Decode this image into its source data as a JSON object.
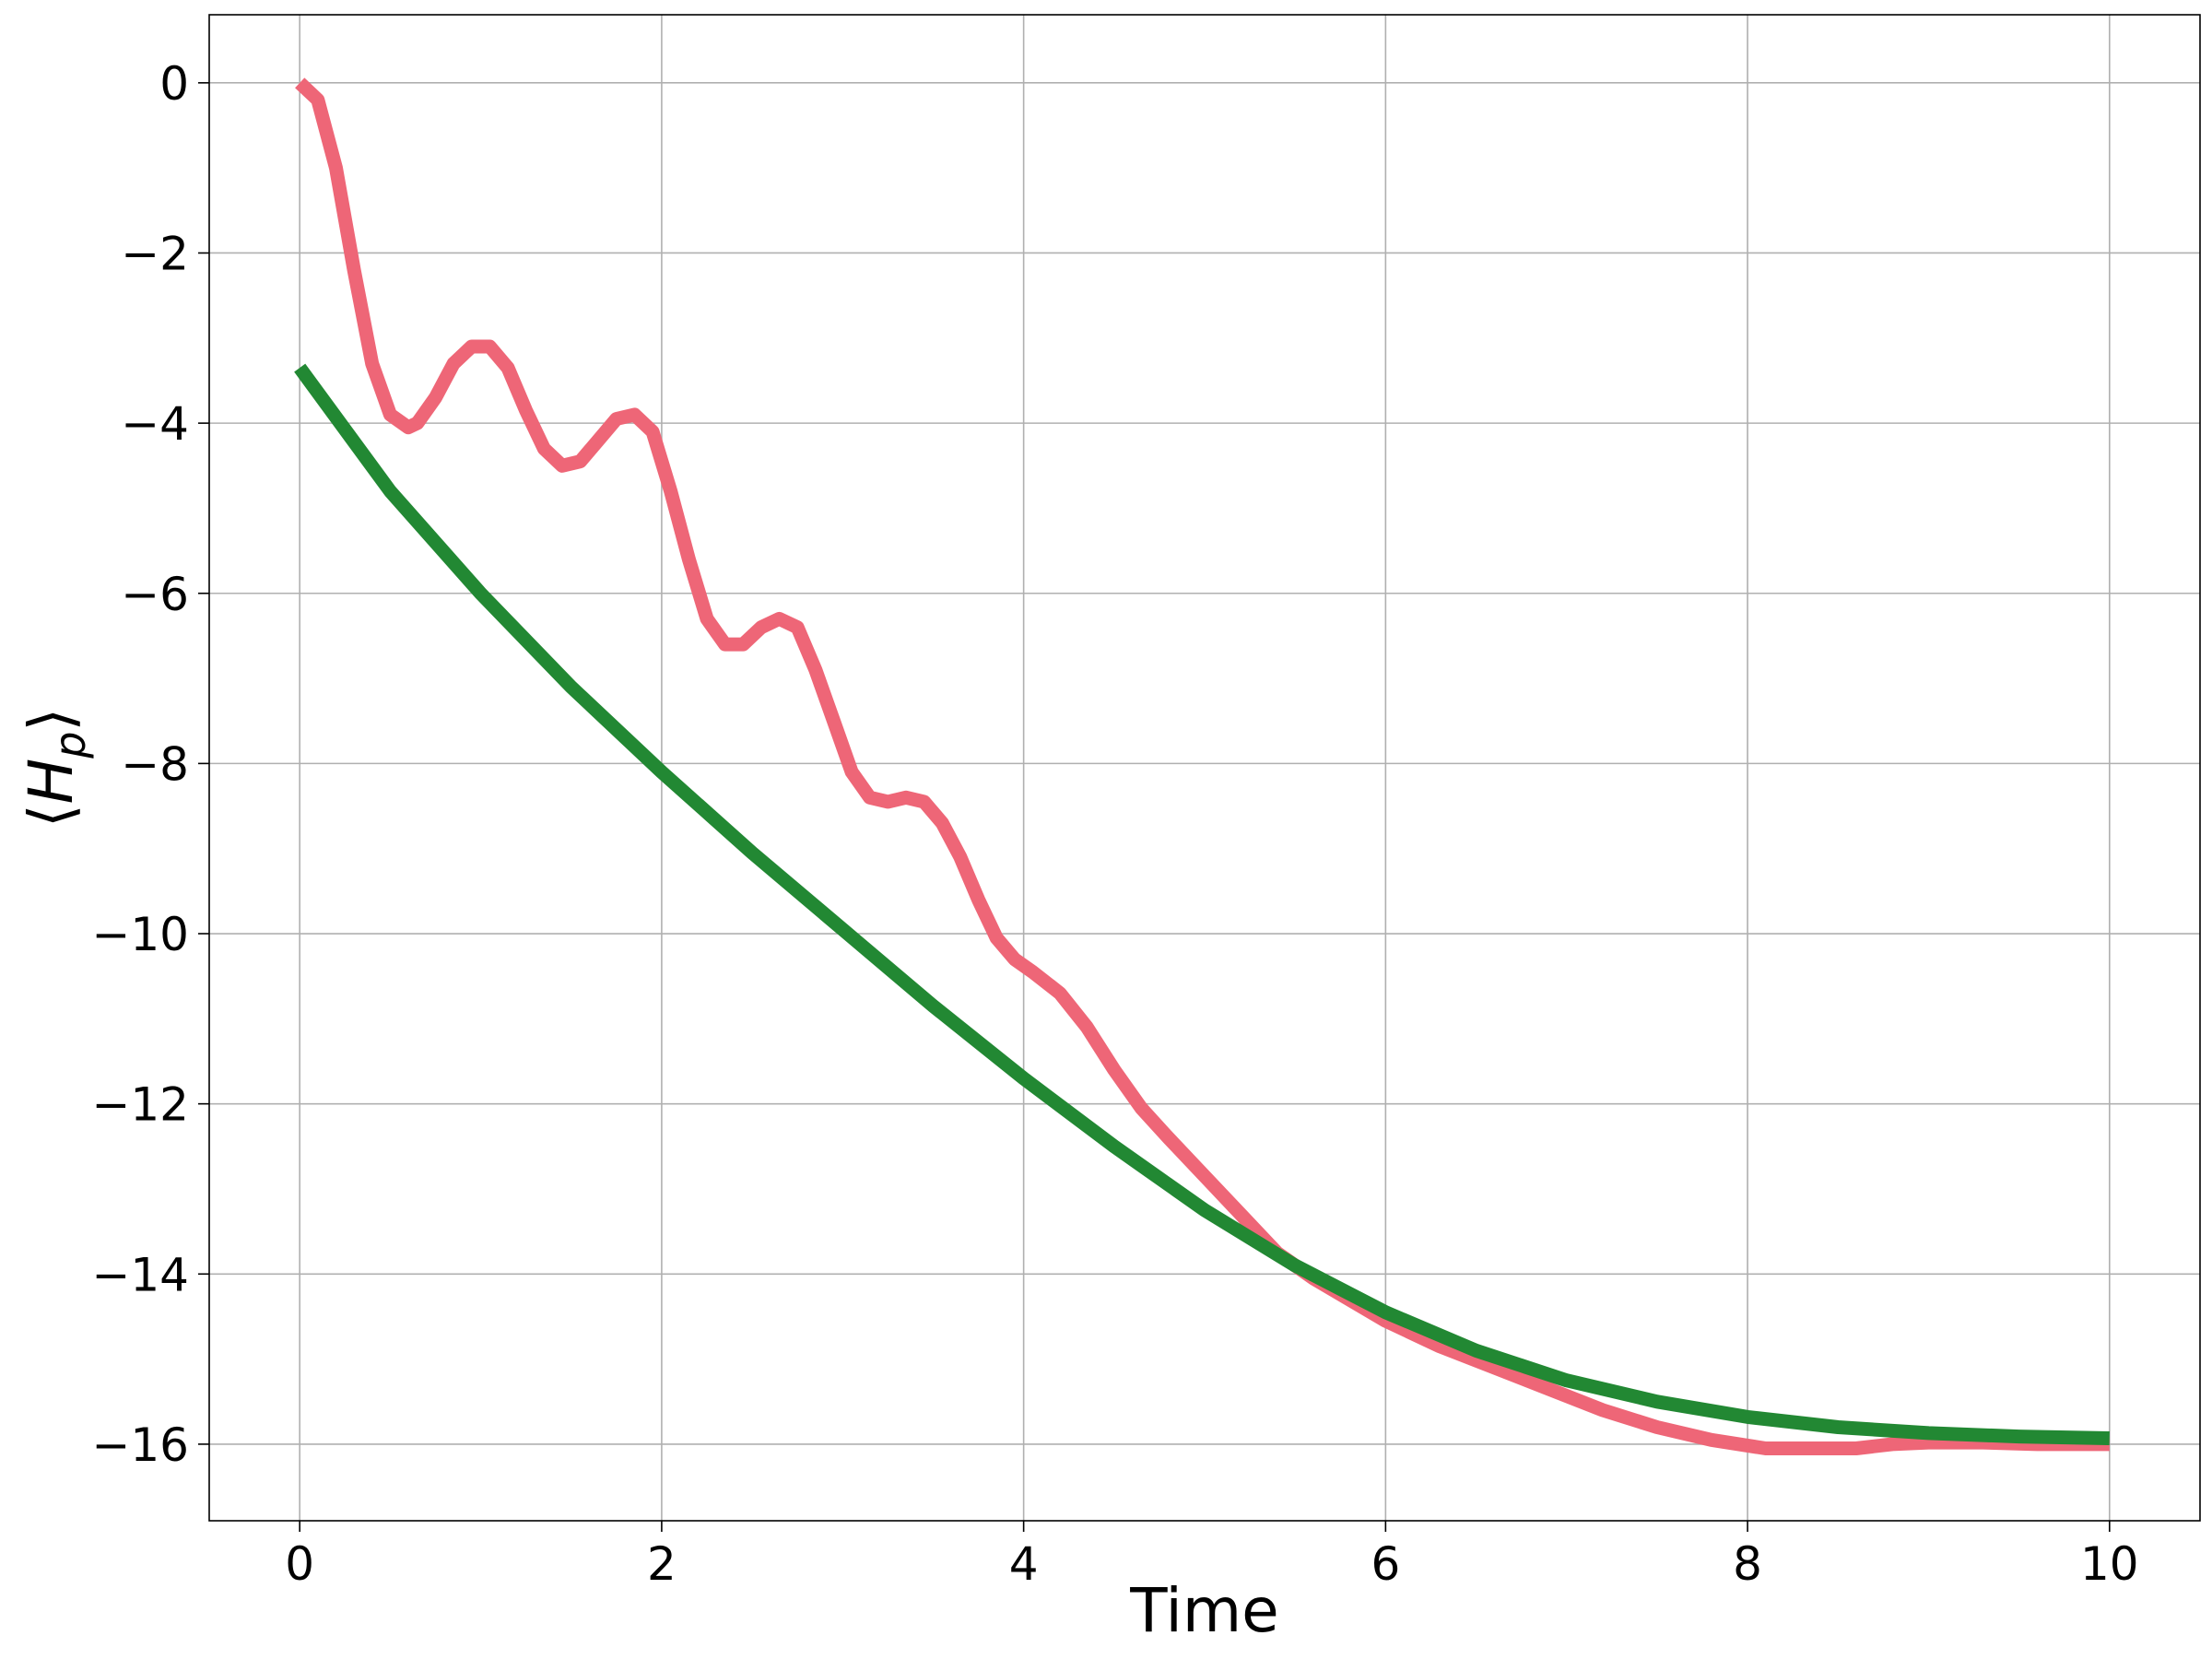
{
  "chart_data": {
    "type": "line",
    "title": "",
    "xlabel": "Time",
    "ylabel": "⟨H_p⟩",
    "ylabel_parts": {
      "open": "⟨",
      "symbol": "H",
      "subscript": "p",
      "close": "⟩"
    },
    "xlim": [
      -0.5,
      10.5
    ],
    "ylim": [
      -16.9,
      0.8
    ],
    "xticks": [
      0,
      2,
      4,
      6,
      8,
      10
    ],
    "xtick_labels": [
      "0",
      "2",
      "4",
      "6",
      "8",
      "10"
    ],
    "yticks": [
      0,
      -2,
      -4,
      -6,
      -8,
      -10,
      -12,
      -14,
      -16
    ],
    "ytick_labels": [
      "0",
      "−2",
      "−4",
      "−6",
      "−8",
      "−10",
      "−12",
      "−14",
      "−16"
    ],
    "grid": true,
    "legend": false,
    "series": [
      {
        "color": "#ee6677",
        "x": [
          0,
          0.1,
          0.2,
          0.3,
          0.4,
          0.5,
          0.6,
          0.65,
          0.75,
          0.85,
          0.95,
          1.05,
          1.15,
          1.25,
          1.35,
          1.45,
          1.55,
          1.65,
          1.75,
          1.85,
          1.95,
          2.05,
          2.15,
          2.25,
          2.35,
          2.45,
          2.55,
          2.65,
          2.75,
          2.85,
          2.95,
          3.05,
          3.15,
          3.25,
          3.35,
          3.45,
          3.55,
          3.65,
          3.75,
          3.85,
          3.95,
          4.05,
          4.2,
          4.35,
          4.5,
          4.65,
          4.8,
          5.0,
          5.2,
          5.4,
          5.6,
          5.8,
          6.0,
          6.3,
          6.6,
          6.9,
          7.2,
          7.5,
          7.8,
          8.1,
          8.4,
          8.6,
          8.8,
          9.0,
          9.3,
          9.6,
          10.0
        ],
        "y": [
          0,
          -0.2,
          -1.0,
          -2.2,
          -3.3,
          -3.9,
          -4.05,
          -4.0,
          -3.7,
          -3.3,
          -3.1,
          -3.1,
          -3.35,
          -3.85,
          -4.3,
          -4.5,
          -4.45,
          -4.2,
          -3.95,
          -3.9,
          -4.1,
          -4.8,
          -5.6,
          -6.3,
          -6.6,
          -6.6,
          -6.4,
          -6.3,
          -6.4,
          -6.9,
          -7.5,
          -8.1,
          -8.4,
          -8.45,
          -8.4,
          -8.45,
          -8.7,
          -9.1,
          -9.6,
          -10.05,
          -10.3,
          -10.45,
          -10.7,
          -11.1,
          -11.6,
          -12.05,
          -12.4,
          -12.85,
          -13.3,
          -13.75,
          -14.05,
          -14.3,
          -14.55,
          -14.85,
          -15.1,
          -15.35,
          -15.6,
          -15.8,
          -15.95,
          -16.05,
          -16.05,
          -16.05,
          -16.0,
          -15.98,
          -15.98,
          -16.0,
          -16.0
        ]
      },
      {
        "color": "#228833",
        "x": [
          0,
          0.5,
          1,
          1.5,
          2,
          2.5,
          3,
          3.5,
          4,
          4.5,
          5,
          5.5,
          6,
          6.5,
          7,
          7.5,
          8,
          8.5,
          9,
          9.5,
          10
        ],
        "y": [
          -3.35,
          -4.8,
          -6.0,
          -7.1,
          -8.1,
          -9.05,
          -9.95,
          -10.85,
          -11.7,
          -12.5,
          -13.25,
          -13.9,
          -14.45,
          -14.9,
          -15.25,
          -15.5,
          -15.68,
          -15.8,
          -15.87,
          -15.91,
          -15.93
        ]
      }
    ]
  }
}
